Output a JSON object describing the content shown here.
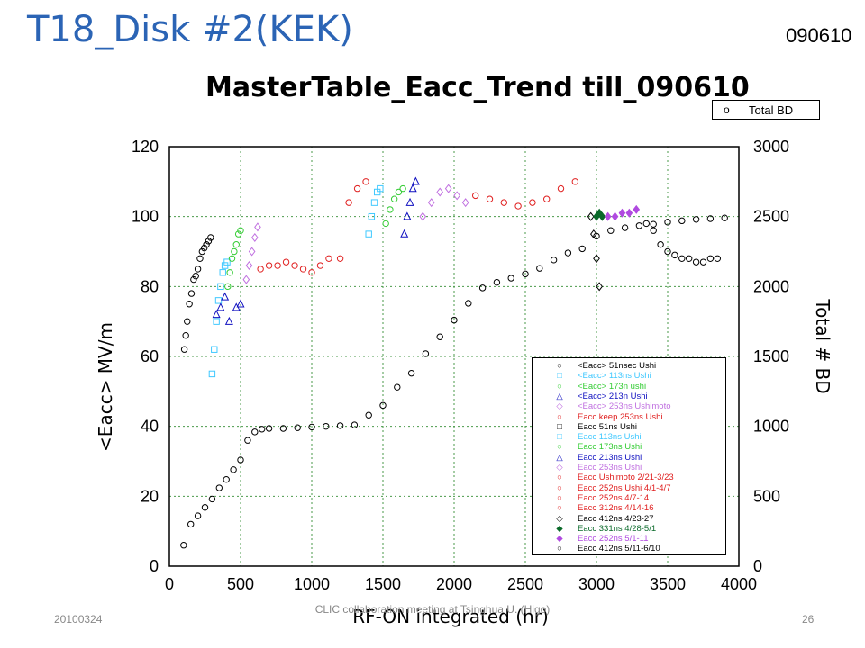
{
  "slide": {
    "title": "T18_Disk #2(KEK)",
    "date_stamp": "090610",
    "footer_date": "20100324",
    "footer_center": "CLIC collaboration meeting at Tsinghua U. (Higo)",
    "page_number": "26"
  },
  "chart_data": {
    "type": "scatter",
    "title": "MasterTable_Eacc_Trend till_090610",
    "xlabel": "RF-ON integrated (hr)",
    "ylabel_left": "<Eacc> MV/m",
    "ylabel_right": "Total # BD",
    "xlim": [
      0,
      4000
    ],
    "ylim_left": [
      0,
      120
    ],
    "ylim_right": [
      0,
      3000
    ],
    "x_ticks": [
      "0",
      "500",
      "1000",
      "1500",
      "2000",
      "2500",
      "3000",
      "3500",
      "4000"
    ],
    "y_left_ticks": [
      "0",
      "20",
      "40",
      "60",
      "80",
      "100",
      "120"
    ],
    "y_right_ticks": [
      "0",
      "500",
      "1000",
      "1500",
      "2000",
      "2500",
      "3000"
    ],
    "grid": true,
    "top_legend": {
      "marker": "o",
      "label": "Total BD"
    },
    "legend": [
      {
        "symbol": "○",
        "color": "#000000",
        "text": "<Eacc>  51nsec Ushi"
      },
      {
        "symbol": "□",
        "color": "#3fc8ff",
        "text": "<Eacc>  113ns Ushi"
      },
      {
        "symbol": "○",
        "color": "#33cc33",
        "text": "<Eacc>  173n ushi"
      },
      {
        "symbol": "△",
        "color": "#1010c0",
        "text": "<Eacc>  213n Ushi"
      },
      {
        "symbol": "◇",
        "color": "#c070e0",
        "text": "<Eacc>  253ns Ushimoto"
      },
      {
        "symbol": "○",
        "color": "#e02020",
        "text": "Eacc keep 253ns Ushi"
      },
      {
        "symbol": "□",
        "color": "#000000",
        "text": "Eacc  51ns Ushi"
      },
      {
        "symbol": "□",
        "color": "#3fc8ff",
        "text": "Eacc  113ns Ushi"
      },
      {
        "symbol": "○",
        "color": "#33cc33",
        "text": "Eacc  173ns Ushi"
      },
      {
        "symbol": "△",
        "color": "#1010c0",
        "text": "Eacc  213ns Ushi"
      },
      {
        "symbol": "◇",
        "color": "#c070e0",
        "text": "Eacc  253ns Ushi"
      },
      {
        "symbol": "○",
        "color": "#e02020",
        "text": "Eacc  Ushimoto 2/21-3/23"
      },
      {
        "symbol": "○",
        "color": "#e02020",
        "text": "Eacc  252ns Ushi 4/1-4/7"
      },
      {
        "symbol": "○",
        "color": "#e02020",
        "text": "Eacc  252ns 4/7-14"
      },
      {
        "symbol": "○",
        "color": "#e02020",
        "text": "Eacc  312ns 4/14-16"
      },
      {
        "symbol": "◇",
        "color": "#000000",
        "text": "Eacc  412ns 4/23-27"
      },
      {
        "symbol": "◆",
        "color": "#0a6a2a",
        "text": "Eacc  331ns 4/28-5/1"
      },
      {
        "symbol": "◆",
        "color": "#b04ae0",
        "text": "Eacc  252ns 5/1-11"
      },
      {
        "symbol": "○",
        "color": "#000000",
        "text": "Eacc  412ns 5/11-6/10"
      }
    ],
    "series": [
      {
        "name": "<Eacc>  51nsec Ushi",
        "color": "#000000",
        "marker": "o",
        "x": [
          105,
          115,
          125,
          140,
          155,
          170,
          185,
          200,
          215,
          230,
          245,
          260,
          275,
          290
        ],
        "y": [
          62,
          66,
          70,
          75,
          78,
          82,
          83,
          85,
          88,
          90,
          91,
          92,
          93,
          94
        ]
      },
      {
        "name": "<Eacc>  113ns Ushi",
        "color": "#3fc8ff",
        "marker": "s",
        "x": [
          300,
          315,
          330,
          345,
          360,
          375,
          390,
          405
        ],
        "y": [
          55,
          62,
          70,
          76,
          80,
          84,
          86,
          87
        ]
      },
      {
        "name": "<Eacc>  173n ushi",
        "color": "#33cc33",
        "marker": "o",
        "x": [
          410,
          425,
          440,
          455,
          470,
          485,
          500
        ],
        "y": [
          80,
          84,
          88,
          90,
          92,
          95,
          96
        ]
      },
      {
        "name": "<Eacc>  213n Ushi",
        "color": "#1010c0",
        "marker": "^",
        "x": [
          330,
          360,
          390,
          420,
          470,
          500
        ],
        "y": [
          72,
          74,
          77,
          70,
          74,
          75
        ]
      },
      {
        "name": "<Eacc>  253ns Ushimoto",
        "color": "#c070e0",
        "marker": "d",
        "x": [
          540,
          560,
          580,
          600,
          620
        ],
        "y": [
          82,
          86,
          90,
          94,
          97
        ]
      },
      {
        "name": "Eacc keep 253ns Ushi",
        "color": "#e02020",
        "marker": "o",
        "x": [
          640,
          700,
          760,
          820,
          880,
          940,
          1000,
          1060,
          1120,
          1200,
          1260,
          1320,
          1380
        ],
        "y": [
          85,
          86,
          86,
          87,
          86,
          85,
          84,
          86,
          88,
          88,
          104,
          108,
          110
        ]
      },
      {
        "name": "Eacc  113ns Ushi",
        "color": "#3fc8ff",
        "marker": "s",
        "x": [
          1400,
          1420,
          1440,
          1460,
          1480
        ],
        "y": [
          95,
          100,
          104,
          107,
          108
        ]
      },
      {
        "name": "Eacc  173ns Ushi",
        "color": "#33cc33",
        "marker": "o",
        "x": [
          1520,
          1550,
          1580,
          1610,
          1640
        ],
        "y": [
          98,
          102,
          105,
          107,
          108
        ]
      },
      {
        "name": "Eacc  213ns Ushi",
        "color": "#1010c0",
        "marker": "^",
        "x": [
          1650,
          1670,
          1690,
          1710,
          1730
        ],
        "y": [
          95,
          100,
          104,
          108,
          110
        ]
      },
      {
        "name": "Eacc  253ns Ushi",
        "color": "#c070e0",
        "marker": "d",
        "x": [
          1780,
          1840,
          1900,
          1960,
          2020,
          2080
        ],
        "y": [
          100,
          104,
          107,
          108,
          106,
          104
        ]
      },
      {
        "name": "Eacc  252ns Ushi 4/1-4/7",
        "color": "#e02020",
        "marker": "o",
        "x": [
          2150,
          2250,
          2350,
          2450,
          2550,
          2650,
          2750,
          2850
        ],
        "y": [
          106,
          105,
          104,
          103,
          104,
          105,
          108,
          110
        ]
      },
      {
        "name": "Eacc  412ns 4/23-27",
        "color": "#000000",
        "marker": "d",
        "x": [
          2960,
          2980,
          3000,
          3020
        ],
        "y": [
          100,
          95,
          88,
          80
        ]
      },
      {
        "name": "Eacc  331ns 4/28-5/1",
        "color": "#0a6a2a",
        "marker": "D",
        "x": [
          3000,
          3020,
          3040
        ],
        "y": [
          100,
          101,
          100
        ]
      },
      {
        "name": "Eacc  252ns 5/1-11",
        "color": "#b04ae0",
        "marker": "D",
        "x": [
          3080,
          3130,
          3180,
          3230,
          3280
        ],
        "y": [
          100,
          100,
          101,
          101,
          102
        ]
      },
      {
        "name": "Eacc  412ns 5/11-6/10",
        "color": "#000000",
        "marker": "o",
        "x": [
          3350,
          3400,
          3450,
          3500,
          3550,
          3600,
          3650,
          3700,
          3750,
          3800,
          3850
        ],
        "y": [
          98,
          96,
          92,
          90,
          89,
          88,
          88,
          87,
          87,
          88,
          88
        ]
      },
      {
        "name": "Total BD",
        "color": "#000000",
        "marker": "o",
        "axis": "right",
        "x": [
          100,
          150,
          200,
          250,
          300,
          350,
          400,
          450,
          500,
          550,
          600,
          650,
          700,
          800,
          900,
          1000,
          1100,
          1200,
          1300,
          1400,
          1500,
          1600,
          1700,
          1800,
          1900,
          2000,
          2100,
          2200,
          2300,
          2400,
          2500,
          2600,
          2700,
          2800,
          2900,
          3000,
          3100,
          3200,
          3300,
          3400,
          3500,
          3600,
          3700,
          3800,
          3900
        ],
        "y": [
          150,
          300,
          360,
          420,
          480,
          560,
          620,
          690,
          760,
          900,
          960,
          980,
          985,
          985,
          990,
          995,
          1000,
          1005,
          1010,
          1080,
          1150,
          1280,
          1380,
          1520,
          1640,
          1760,
          1880,
          1990,
          2030,
          2060,
          2090,
          2130,
          2190,
          2240,
          2270,
          2360,
          2400,
          2420,
          2435,
          2445,
          2460,
          2470,
          2480,
          2485,
          2490
        ]
      }
    ]
  }
}
